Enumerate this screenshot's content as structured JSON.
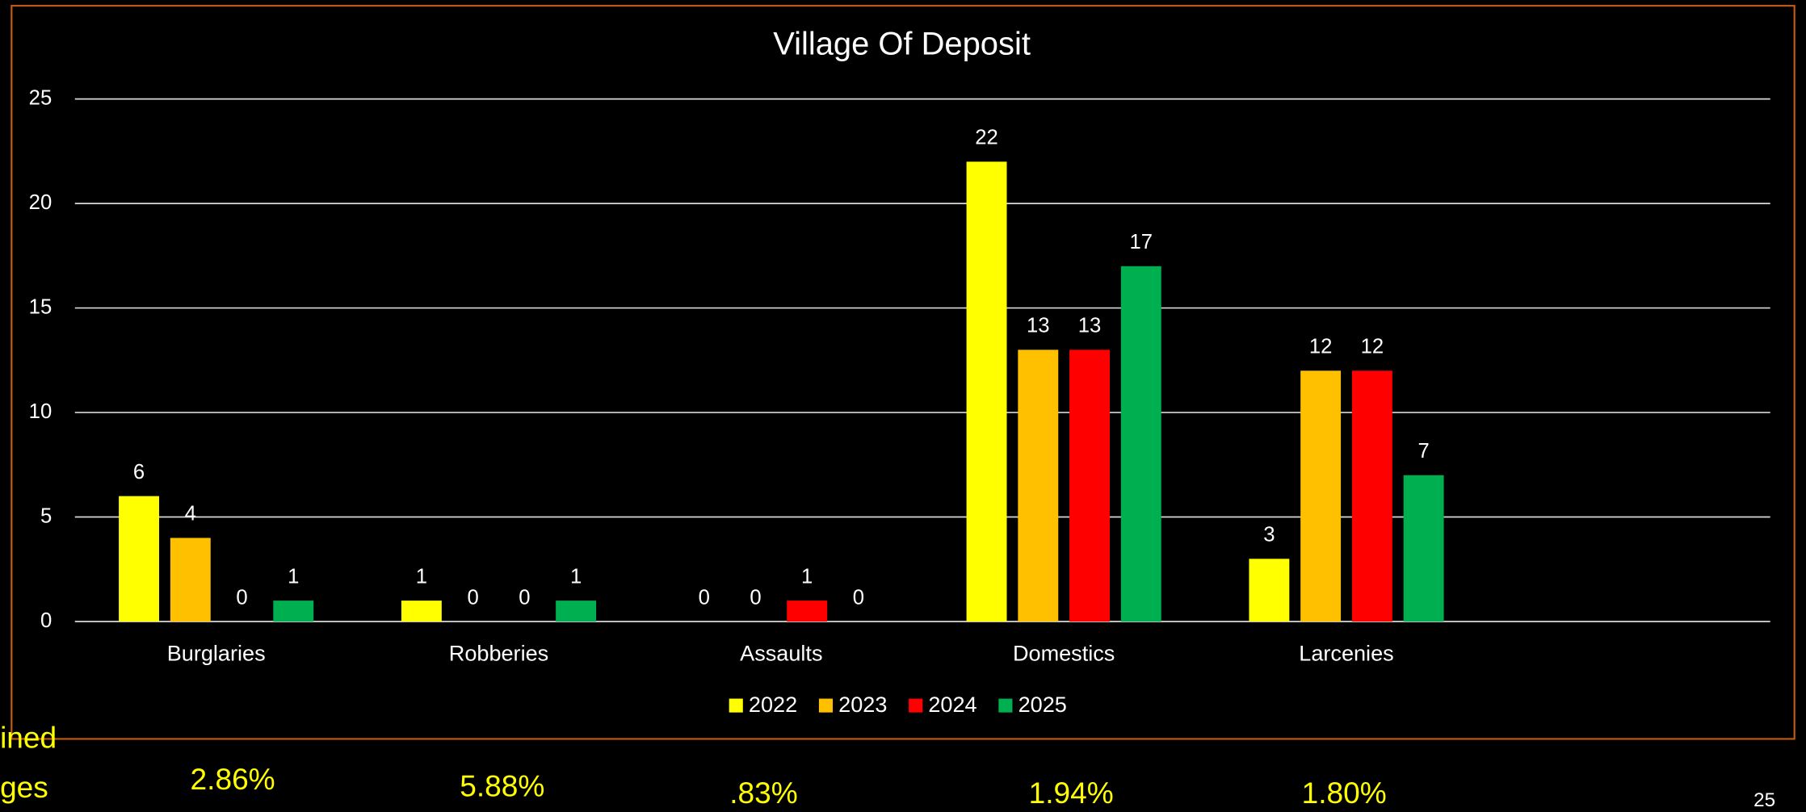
{
  "chart_data": {
    "type": "bar",
    "title": "Village Of Deposit",
    "categories": [
      "Burglaries",
      "Robberies",
      "Assaults",
      "Domestics",
      "Larcenies",
      null
    ],
    "series": [
      {
        "name": "2022",
        "color": "#ffff00",
        "values": [
          6,
          1,
          0,
          22,
          3,
          null
        ]
      },
      {
        "name": "2023",
        "color": "#ffc000",
        "values": [
          4,
          0,
          0,
          13,
          12,
          null
        ]
      },
      {
        "name": "2024",
        "color": "#ff0000",
        "values": [
          0,
          0,
          1,
          13,
          12,
          null
        ]
      },
      {
        "name": "2025",
        "color": "#00b050",
        "values": [
          1,
          1,
          0,
          17,
          7,
          null
        ]
      }
    ],
    "ylim": [
      0,
      25
    ],
    "yticks": [
      0,
      5,
      10,
      15,
      20,
      25
    ],
    "grid": true,
    "legend": "bottom"
  },
  "footer": {
    "label_lines": [
      "ined",
      "ges"
    ],
    "percentages": [
      "2.86%",
      "5.88%",
      ".83%",
      "1.94%",
      "1.80%"
    ],
    "page_number": "25"
  }
}
